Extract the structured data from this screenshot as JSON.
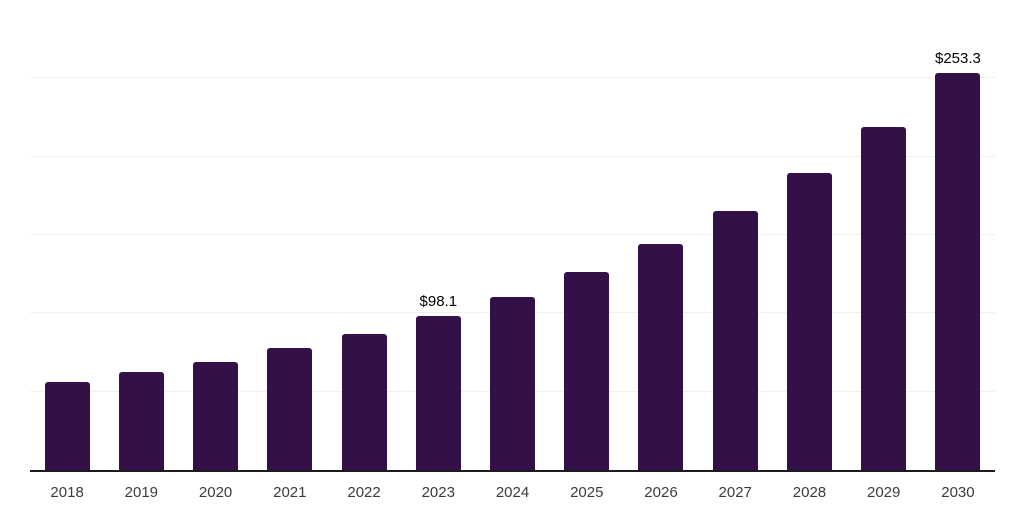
{
  "chart_data": {
    "type": "bar",
    "title": "",
    "xlabel": "",
    "ylabel": "",
    "categories": [
      "2018",
      "2019",
      "2020",
      "2021",
      "2022",
      "2023",
      "2024",
      "2025",
      "2026",
      "2027",
      "2028",
      "2029",
      "2030"
    ],
    "values": [
      56.2,
      62.4,
      69.2,
      77.6,
      87.0,
      98.1,
      110.7,
      126.5,
      144.4,
      165.4,
      189.7,
      219.0,
      253.3
    ],
    "data_labels": [
      "",
      "",
      "",
      "",
      "",
      "$98.1",
      "",
      "",
      "",
      "",
      "",
      "",
      "$253.3"
    ],
    "ylim": [
      0,
      300
    ],
    "gridline_step": 50,
    "grid": true,
    "legend": false,
    "colors": {
      "bar": "#331048",
      "gridline": "#f0f0f2",
      "axis_line": "#1c1c1c",
      "tick_label": "#3c3c3c",
      "data_label": "#000000",
      "background": "#ffffff"
    }
  }
}
